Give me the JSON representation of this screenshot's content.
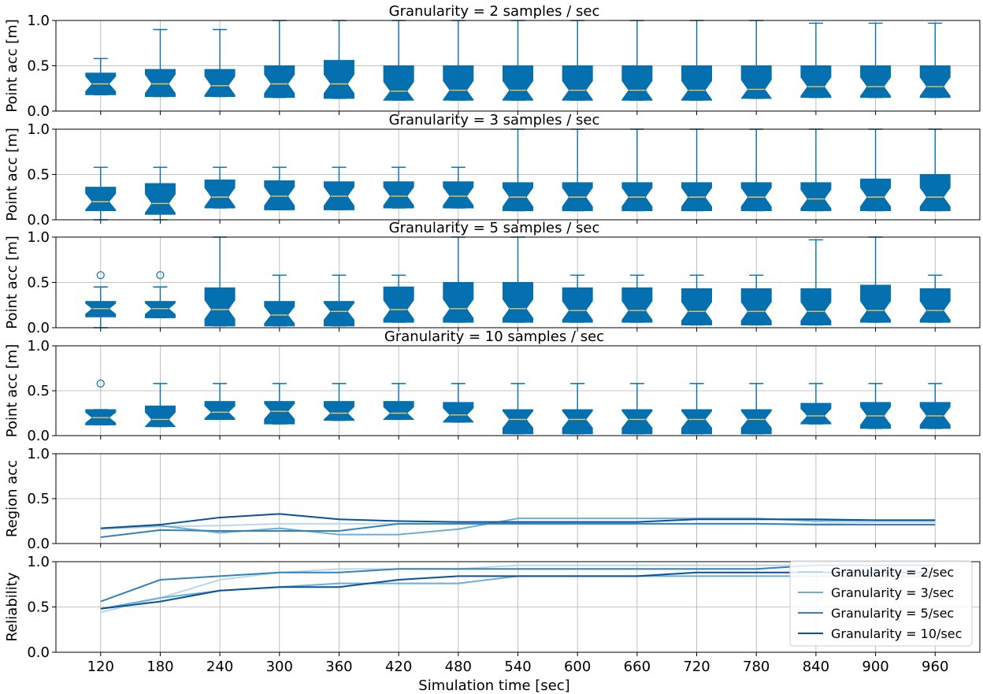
{
  "figure": {
    "xlabel": "Simulation time [sec]",
    "x_ticks": [
      120,
      180,
      240,
      300,
      360,
      420,
      480,
      540,
      600,
      660,
      720,
      780,
      840,
      900,
      960
    ],
    "y_ticks": [
      0.0,
      0.5,
      1.0
    ],
    "y_tick_labels": [
      "0.0",
      "0.5",
      "1.0"
    ],
    "box_color": "#0570b0",
    "median_color": "#f2c14e",
    "grid_color": "#b0b0b0"
  },
  "chart_data": [
    {
      "type": "box",
      "title": "Granularity = 2 samples / sec",
      "ylabel": "Point acc [m]",
      "ylim": [
        0,
        1
      ],
      "categories": [
        120,
        180,
        240,
        300,
        360,
        420,
        480,
        540,
        600,
        660,
        720,
        780,
        840,
        900,
        960
      ],
      "boxes": [
        {
          "whislo": 0.18,
          "q1": 0.18,
          "med": 0.3,
          "q3": 0.42,
          "whishi": 0.58,
          "fliers": []
        },
        {
          "whislo": 0.16,
          "q1": 0.16,
          "med": 0.3,
          "q3": 0.46,
          "whishi": 0.9,
          "fliers": []
        },
        {
          "whislo": 0.16,
          "q1": 0.16,
          "med": 0.28,
          "q3": 0.46,
          "whishi": 0.9,
          "fliers": []
        },
        {
          "whislo": 0.15,
          "q1": 0.15,
          "med": 0.3,
          "q3": 0.5,
          "whishi": 1.0,
          "fliers": []
        },
        {
          "whislo": 0.14,
          "q1": 0.14,
          "med": 0.3,
          "q3": 0.56,
          "whishi": 1.0,
          "fliers": []
        },
        {
          "whislo": 0.12,
          "q1": 0.12,
          "med": 0.22,
          "q3": 0.5,
          "whishi": 1.0,
          "fliers": []
        },
        {
          "whislo": 0.12,
          "q1": 0.12,
          "med": 0.23,
          "q3": 0.5,
          "whishi": 1.0,
          "fliers": []
        },
        {
          "whislo": 0.12,
          "q1": 0.12,
          "med": 0.23,
          "q3": 0.5,
          "whishi": 1.0,
          "fliers": []
        },
        {
          "whislo": 0.12,
          "q1": 0.12,
          "med": 0.23,
          "q3": 0.5,
          "whishi": 1.0,
          "fliers": []
        },
        {
          "whislo": 0.12,
          "q1": 0.12,
          "med": 0.23,
          "q3": 0.5,
          "whishi": 1.0,
          "fliers": []
        },
        {
          "whislo": 0.12,
          "q1": 0.12,
          "med": 0.23,
          "q3": 0.5,
          "whishi": 1.0,
          "fliers": []
        },
        {
          "whislo": 0.14,
          "q1": 0.14,
          "med": 0.24,
          "q3": 0.5,
          "whishi": 1.0,
          "fliers": []
        },
        {
          "whislo": 0.15,
          "q1": 0.15,
          "med": 0.27,
          "q3": 0.5,
          "whishi": 0.97,
          "fliers": []
        },
        {
          "whislo": 0.15,
          "q1": 0.15,
          "med": 0.27,
          "q3": 0.5,
          "whishi": 0.97,
          "fliers": []
        },
        {
          "whislo": 0.15,
          "q1": 0.15,
          "med": 0.27,
          "q3": 0.5,
          "whishi": 0.97,
          "fliers": []
        }
      ]
    },
    {
      "type": "box",
      "title": "Granularity = 3 samples / sec",
      "ylabel": "Point acc [m]",
      "ylim": [
        0,
        1
      ],
      "categories": [
        120,
        180,
        240,
        300,
        360,
        420,
        480,
        540,
        600,
        660,
        720,
        780,
        840,
        900,
        960
      ],
      "boxes": [
        {
          "whislo": 0.0,
          "q1": 0.1,
          "med": 0.2,
          "q3": 0.36,
          "whishi": 0.58,
          "fliers": []
        },
        {
          "whislo": 0.0,
          "q1": 0.06,
          "med": 0.18,
          "q3": 0.4,
          "whishi": 0.58,
          "fliers": []
        },
        {
          "whislo": 0.13,
          "q1": 0.13,
          "med": 0.25,
          "q3": 0.44,
          "whishi": 0.58,
          "fliers": []
        },
        {
          "whislo": 0.11,
          "q1": 0.11,
          "med": 0.26,
          "q3": 0.43,
          "whishi": 0.58,
          "fliers": []
        },
        {
          "whislo": 0.11,
          "q1": 0.11,
          "med": 0.26,
          "q3": 0.42,
          "whishi": 0.58,
          "fliers": []
        },
        {
          "whislo": 0.13,
          "q1": 0.13,
          "med": 0.26,
          "q3": 0.42,
          "whishi": 0.58,
          "fliers": []
        },
        {
          "whislo": 0.13,
          "q1": 0.13,
          "med": 0.26,
          "q3": 0.42,
          "whishi": 0.58,
          "fliers": []
        },
        {
          "whislo": 0.1,
          "q1": 0.1,
          "med": 0.25,
          "q3": 0.41,
          "whishi": 1.0,
          "fliers": []
        },
        {
          "whislo": 0.1,
          "q1": 0.1,
          "med": 0.25,
          "q3": 0.41,
          "whishi": 1.0,
          "fliers": []
        },
        {
          "whislo": 0.1,
          "q1": 0.1,
          "med": 0.25,
          "q3": 0.41,
          "whishi": 1.0,
          "fliers": []
        },
        {
          "whislo": 0.1,
          "q1": 0.1,
          "med": 0.25,
          "q3": 0.41,
          "whishi": 1.0,
          "fliers": []
        },
        {
          "whislo": 0.1,
          "q1": 0.1,
          "med": 0.25,
          "q3": 0.41,
          "whishi": 1.0,
          "fliers": []
        },
        {
          "whislo": 0.1,
          "q1": 0.1,
          "med": 0.23,
          "q3": 0.41,
          "whishi": 1.0,
          "fliers": []
        },
        {
          "whislo": 0.1,
          "q1": 0.1,
          "med": 0.25,
          "q3": 0.45,
          "whishi": 1.0,
          "fliers": []
        },
        {
          "whislo": 0.1,
          "q1": 0.1,
          "med": 0.25,
          "q3": 0.5,
          "whishi": 1.0,
          "fliers": []
        }
      ]
    },
    {
      "type": "box",
      "title": "Granularity = 5 samples / sec",
      "ylabel": "Point acc [m]",
      "ylim": [
        0,
        1
      ],
      "categories": [
        120,
        180,
        240,
        300,
        360,
        420,
        480,
        540,
        600,
        660,
        720,
        780,
        840,
        900,
        960
      ],
      "boxes": [
        {
          "whislo": 0.0,
          "q1": 0.12,
          "med": 0.21,
          "q3": 0.29,
          "whishi": 0.45,
          "fliers": [
            0.58
          ]
        },
        {
          "whislo": 0.11,
          "q1": 0.11,
          "med": 0.21,
          "q3": 0.29,
          "whishi": 0.45,
          "fliers": [
            0.58
          ]
        },
        {
          "whislo": 0.02,
          "q1": 0.02,
          "med": 0.2,
          "q3": 0.44,
          "whishi": 1.0,
          "fliers": []
        },
        {
          "whislo": 0.02,
          "q1": 0.02,
          "med": 0.14,
          "q3": 0.29,
          "whishi": 0.58,
          "fliers": []
        },
        {
          "whislo": 0.02,
          "q1": 0.02,
          "med": 0.18,
          "q3": 0.29,
          "whishi": 0.58,
          "fliers": []
        },
        {
          "whislo": 0.06,
          "q1": 0.06,
          "med": 0.2,
          "q3": 0.45,
          "whishi": 0.58,
          "fliers": []
        },
        {
          "whislo": 0.06,
          "q1": 0.06,
          "med": 0.21,
          "q3": 0.5,
          "whishi": 1.0,
          "fliers": []
        },
        {
          "whislo": 0.06,
          "q1": 0.06,
          "med": 0.21,
          "q3": 0.5,
          "whishi": 1.0,
          "fliers": []
        },
        {
          "whislo": 0.06,
          "q1": 0.06,
          "med": 0.19,
          "q3": 0.44,
          "whishi": 0.58,
          "fliers": []
        },
        {
          "whislo": 0.06,
          "q1": 0.06,
          "med": 0.19,
          "q3": 0.44,
          "whishi": 0.58,
          "fliers": []
        },
        {
          "whislo": 0.03,
          "q1": 0.03,
          "med": 0.18,
          "q3": 0.43,
          "whishi": 0.58,
          "fliers": []
        },
        {
          "whislo": 0.03,
          "q1": 0.03,
          "med": 0.18,
          "q3": 0.43,
          "whishi": 0.58,
          "fliers": []
        },
        {
          "whislo": 0.03,
          "q1": 0.03,
          "med": 0.18,
          "q3": 0.43,
          "whishi": 0.97,
          "fliers": []
        },
        {
          "whislo": 0.06,
          "q1": 0.06,
          "med": 0.19,
          "q3": 0.47,
          "whishi": 1.0,
          "fliers": []
        },
        {
          "whislo": 0.06,
          "q1": 0.06,
          "med": 0.19,
          "q3": 0.43,
          "whishi": 0.58,
          "fliers": []
        }
      ]
    },
    {
      "type": "box",
      "title": "Granularity = 10 samples / sec",
      "ylabel": "Point acc [m]",
      "ylim": [
        0,
        1
      ],
      "categories": [
        120,
        180,
        240,
        300,
        360,
        420,
        480,
        540,
        600,
        660,
        720,
        780,
        840,
        900,
        960
      ],
      "boxes": [
        {
          "whislo": 0.12,
          "q1": 0.12,
          "med": 0.2,
          "q3": 0.29,
          "whishi": 0.29,
          "fliers": [
            0.58
          ]
        },
        {
          "whislo": 0.1,
          "q1": 0.1,
          "med": 0.18,
          "q3": 0.33,
          "whishi": 0.58,
          "fliers": []
        },
        {
          "whislo": 0.18,
          "q1": 0.18,
          "med": 0.26,
          "q3": 0.38,
          "whishi": 0.58,
          "fliers": []
        },
        {
          "whislo": 0.13,
          "q1": 0.13,
          "med": 0.27,
          "q3": 0.38,
          "whishi": 0.58,
          "fliers": []
        },
        {
          "whislo": 0.17,
          "q1": 0.17,
          "med": 0.25,
          "q3": 0.38,
          "whishi": 0.58,
          "fliers": []
        },
        {
          "whislo": 0.18,
          "q1": 0.18,
          "med": 0.25,
          "q3": 0.38,
          "whishi": 0.58,
          "fliers": []
        },
        {
          "whislo": 0.15,
          "q1": 0.15,
          "med": 0.23,
          "q3": 0.37,
          "whishi": 0.58,
          "fliers": []
        },
        {
          "whislo": 0.02,
          "q1": 0.02,
          "med": 0.18,
          "q3": 0.29,
          "whishi": 0.58,
          "fliers": []
        },
        {
          "whislo": 0.02,
          "q1": 0.02,
          "med": 0.18,
          "q3": 0.29,
          "whishi": 0.58,
          "fliers": []
        },
        {
          "whislo": 0.02,
          "q1": 0.02,
          "med": 0.18,
          "q3": 0.29,
          "whishi": 0.58,
          "fliers": []
        },
        {
          "whislo": 0.02,
          "q1": 0.02,
          "med": 0.18,
          "q3": 0.29,
          "whishi": 0.58,
          "fliers": []
        },
        {
          "whislo": 0.02,
          "q1": 0.02,
          "med": 0.18,
          "q3": 0.29,
          "whishi": 0.58,
          "fliers": []
        },
        {
          "whislo": 0.13,
          "q1": 0.13,
          "med": 0.22,
          "q3": 0.36,
          "whishi": 0.58,
          "fliers": []
        },
        {
          "whislo": 0.08,
          "q1": 0.08,
          "med": 0.22,
          "q3": 0.37,
          "whishi": 0.58,
          "fliers": []
        },
        {
          "whislo": 0.08,
          "q1": 0.08,
          "med": 0.22,
          "q3": 0.37,
          "whishi": 0.58,
          "fliers": []
        }
      ]
    },
    {
      "type": "line",
      "title": "",
      "ylabel": "Region acc",
      "ylim": [
        0,
        1
      ],
      "x": [
        120,
        180,
        240,
        300,
        360,
        420,
        480,
        540,
        600,
        660,
        720,
        780,
        840,
        900,
        960
      ],
      "series": [
        {
          "name": "Granularity = 2/sec",
          "color": "#bdd7e7",
          "values": [
            0.16,
            0.19,
            0.2,
            0.22,
            0.22,
            0.22,
            0.22,
            0.22,
            0.22,
            0.22,
            0.22,
            0.22,
            0.22,
            0.24,
            0.24
          ]
        },
        {
          "name": "Granularity = 3/sec",
          "color": "#6baed6",
          "values": [
            0.17,
            0.2,
            0.12,
            0.17,
            0.1,
            0.1,
            0.16,
            0.28,
            0.28,
            0.28,
            0.28,
            0.28,
            0.25,
            0.26,
            0.26
          ]
        },
        {
          "name": "Granularity = 5/sec",
          "color": "#3182bd",
          "values": [
            0.07,
            0.15,
            0.14,
            0.14,
            0.14,
            0.22,
            0.22,
            0.22,
            0.22,
            0.22,
            0.22,
            0.22,
            0.21,
            0.21,
            0.21
          ]
        },
        {
          "name": "Granularity = 10/sec",
          "color": "#08519c",
          "values": [
            0.17,
            0.21,
            0.29,
            0.33,
            0.27,
            0.25,
            0.24,
            0.24,
            0.24,
            0.24,
            0.27,
            0.27,
            0.27,
            0.26,
            0.26
          ]
        }
      ]
    },
    {
      "type": "line",
      "title": "",
      "ylabel": "Reliability",
      "ylim": [
        0,
        1
      ],
      "x": [
        120,
        180,
        240,
        300,
        360,
        420,
        480,
        540,
        600,
        660,
        720,
        780,
        840,
        900,
        960
      ],
      "legend_position": "bottom-right",
      "series": [
        {
          "name": "Granularity = 2/sec",
          "color": "#bdd7e7",
          "values": [
            0.44,
            0.6,
            0.8,
            0.88,
            0.92,
            0.92,
            0.92,
            0.96,
            0.96,
            0.96,
            0.96,
            0.96,
            0.96,
            0.96,
            0.96
          ]
        },
        {
          "name": "Granularity = 3/sec",
          "color": "#6baed6",
          "values": [
            0.48,
            0.6,
            0.68,
            0.72,
            0.76,
            0.76,
            0.76,
            0.84,
            0.84,
            0.84,
            0.84,
            0.84,
            0.84,
            0.84,
            0.84
          ]
        },
        {
          "name": "Granularity = 5/sec",
          "color": "#3182bd",
          "values": [
            0.56,
            0.8,
            0.84,
            0.88,
            0.88,
            0.92,
            0.92,
            0.92,
            0.92,
            0.92,
            0.92,
            0.92,
            0.96,
            0.96,
            0.96
          ]
        },
        {
          "name": "Granularity = 10/sec",
          "color": "#08519c",
          "values": [
            0.48,
            0.56,
            0.68,
            0.72,
            0.72,
            0.8,
            0.84,
            0.84,
            0.84,
            0.84,
            0.88,
            0.88,
            0.88,
            0.88,
            0.88
          ]
        }
      ]
    }
  ]
}
